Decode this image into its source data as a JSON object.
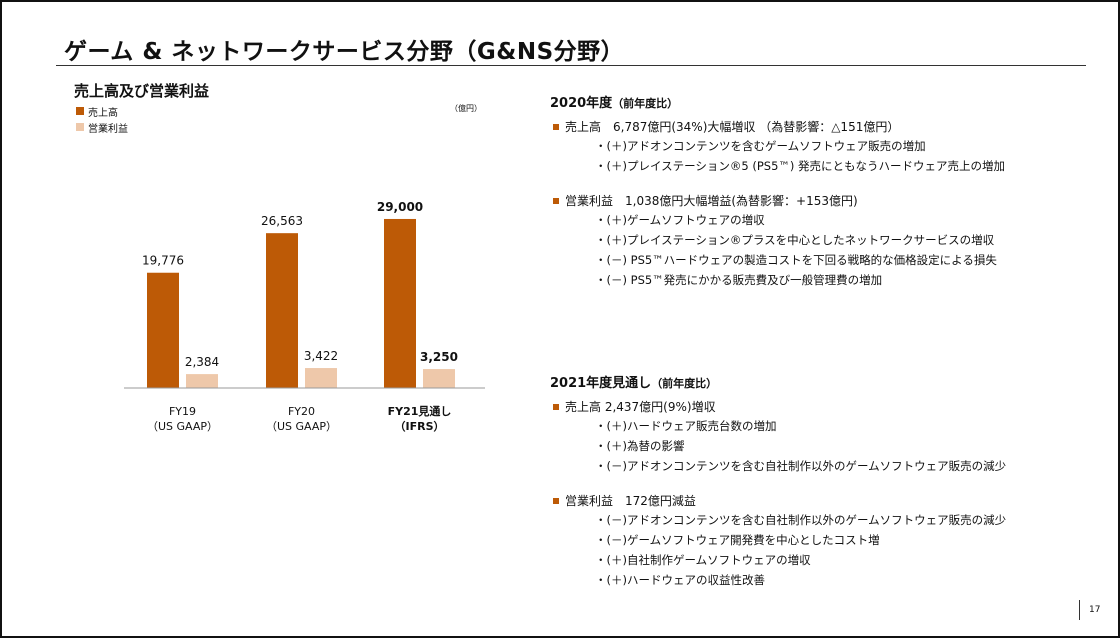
{
  "title": "ゲーム & ネットワークサービス分野（G&NS分野）",
  "colors": {
    "sales": "#BD5A06",
    "op_income": "#EEC8AA",
    "bullet": "#BD5A06",
    "text": "#111111"
  },
  "chart_data": {
    "type": "bar",
    "title": "売上高及び営業利益",
    "unit": "（億円）",
    "categories": [
      {
        "line1": "FY19",
        "line2": "（US GAAP）",
        "bold": false
      },
      {
        "line1": "FY20",
        "line2": "（US GAAP）",
        "bold": false
      },
      {
        "line1": "FY21見通し",
        "line2": "（IFRS）",
        "bold": true
      }
    ],
    "series": [
      {
        "name": "売上高",
        "values": [
          19776,
          26563,
          29000
        ],
        "labels": [
          "19,776",
          "26,563",
          "29,000"
        ]
      },
      {
        "name": "営業利益",
        "values": [
          2384,
          3422,
          3250
        ],
        "labels": [
          "2,384",
          "3,422",
          "3,250"
        ]
      }
    ],
    "ylim": [
      0,
      35000
    ],
    "grid": false,
    "legend_position": "top-left"
  },
  "sections": [
    {
      "heading": "2020年度",
      "heading_paren": "（前年度比）",
      "items": [
        {
          "text": "売上高　6,787億円(34%)大幅増収 （為替影響：△151億円）",
          "subs": [
            "・(＋)アドオンコンテンツを含むゲームソフトウェア販売の増加",
            "・(＋)プレイステーション®5 (PS5™) 発売にともなうハードウェア売上の増加"
          ]
        },
        {
          "text": "営業利益　1,038億円大幅増益(為替影響：+153億円)",
          "subs": [
            "・(＋)ゲームソフトウェアの増収",
            "・(＋)プレイステーション®プラスを中心としたネットワークサービスの増収",
            "・(－) PS5™ハードウェアの製造コストを下回る戦略的な価格設定による損失",
            "・(－) PS5™発売にかかる販売費及び一般管理費の増加"
          ]
        }
      ]
    },
    {
      "heading": "2021年度見通し",
      "heading_paren": "（前年度比）",
      "items": [
        {
          "text": "売上高 2,437億円(9%)増収",
          "subs": [
            "・(＋)ハードウェア販売台数の増加",
            "・(＋)為替の影響",
            "・(－)アドオンコンテンツを含む自社制作以外のゲームソフトウェア販売の減少"
          ]
        },
        {
          "text": "営業利益　172億円減益",
          "subs": [
            "・(－)アドオンコンテンツを含む自社制作以外のゲームソフトウェア販売の減少",
            "・(－)ゲームソフトウェア開発費を中心としたコスト増",
            "・(＋)自社制作ゲームソフトウェアの増収",
            "・(＋)ハードウェアの収益性改善"
          ]
        }
      ]
    }
  ],
  "page_number": "17"
}
